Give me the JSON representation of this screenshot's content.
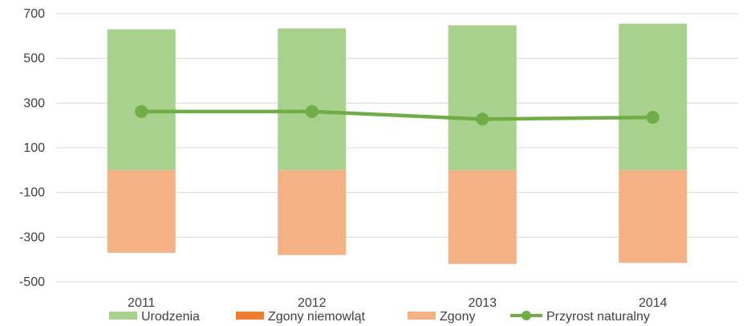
{
  "chart_data": {
    "type": "bar",
    "categories": [
      "2011",
      "2012",
      "2013",
      "2014"
    ],
    "series": [
      {
        "name": "Urodzenia",
        "kind": "bar",
        "color": "#a9d18e",
        "values": [
          630,
          634,
          648,
          655
        ]
      },
      {
        "name": "Zgony niemowląt",
        "kind": "bar",
        "color": "#ed7d31",
        "values": [
          0,
          0,
          0,
          0
        ]
      },
      {
        "name": "Zgony",
        "kind": "bar",
        "color": "#f4b183",
        "values": [
          -370,
          -380,
          -420,
          -415
        ]
      },
      {
        "name": "Przyrost naturalny",
        "kind": "line",
        "color": "#70ad47",
        "values": [
          262,
          262,
          228,
          236
        ]
      }
    ],
    "y_ticks": [
      "700",
      "500",
      "300",
      "100",
      "-100",
      "-300",
      "-500"
    ],
    "ylim": [
      -500,
      700
    ],
    "grid": true,
    "legend_position": "bottom"
  }
}
